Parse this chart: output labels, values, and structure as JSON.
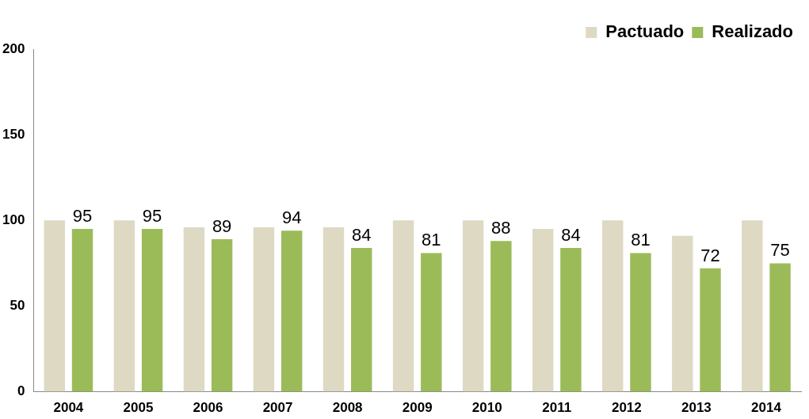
{
  "chart_data": {
    "type": "bar",
    "categories": [
      "2004",
      "2005",
      "2006",
      "2007",
      "2008",
      "2009",
      "2010",
      "2011",
      "2012",
      "2013",
      "2014"
    ],
    "series": [
      {
        "name": "Pactuado",
        "color": "#ddd9c3",
        "values": [
          100,
          100,
          96,
          96,
          96,
          100,
          100,
          95,
          100,
          91,
          100
        ]
      },
      {
        "name": "Realizado",
        "color": "#9bbb59",
        "values": [
          95,
          95,
          89,
          94,
          84,
          81,
          88,
          84,
          81,
          72,
          75
        ],
        "value_labels": [
          "95",
          "95",
          "89",
          "94",
          "84",
          "81",
          "88",
          "84",
          "81",
          "72",
          "75"
        ]
      }
    ],
    "ylim": [
      0,
      200
    ],
    "yticks": [
      0,
      50,
      100,
      150,
      200
    ],
    "grid": false,
    "legend": "top right"
  }
}
